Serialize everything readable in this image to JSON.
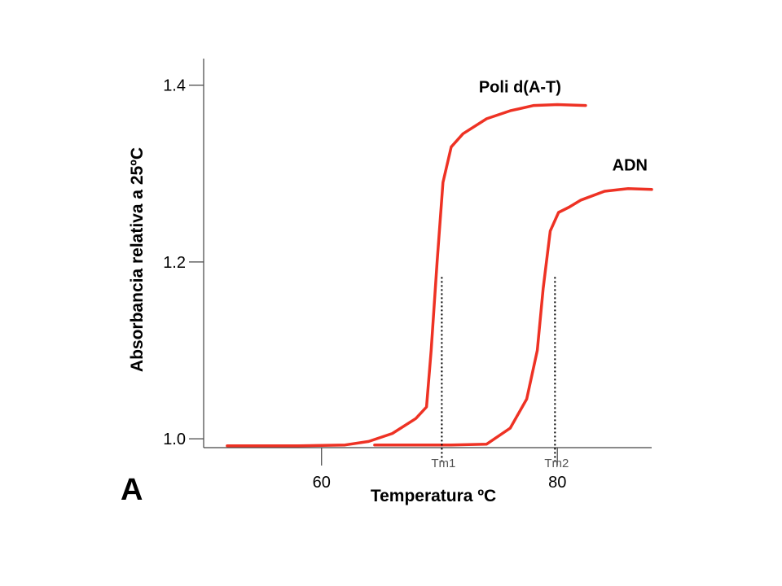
{
  "chart_data": {
    "type": "line",
    "panel_label": "A",
    "xlabel": "Temperatura ºC",
    "ylabel": "Absorbancia relativa a 25ºC",
    "xlim": [
      50,
      88
    ],
    "ylim": [
      0.99,
      1.43
    ],
    "x_ticks": [
      {
        "value": 60,
        "label": "60"
      },
      {
        "value": 80,
        "label": "80"
      }
    ],
    "y_ticks": [
      {
        "value": 1.0,
        "label": "1.0"
      },
      {
        "value": 1.2,
        "label": "1.2"
      },
      {
        "value": 1.4,
        "label": "1.4"
      }
    ],
    "grid": false,
    "line_color": "#ee3224",
    "series": [
      {
        "name": "Poli d(A-T)",
        "x": [
          52,
          58,
          62,
          64,
          66,
          68,
          68.9,
          69.3,
          69.8,
          70.3,
          71,
          72,
          74,
          76,
          78,
          80,
          82.4
        ],
        "y": [
          0.992,
          0.992,
          0.993,
          0.997,
          1.006,
          1.023,
          1.036,
          1.1,
          1.2,
          1.29,
          1.33,
          1.345,
          1.362,
          1.371,
          1.377,
          1.378,
          1.377
        ]
      },
      {
        "name": "ADN",
        "x": [
          64.5,
          68,
          71,
          74,
          76,
          77.4,
          78.3,
          78.8,
          79.4,
          80.1,
          81,
          82,
          84,
          86,
          88
        ],
        "y": [
          0.993,
          0.993,
          0.993,
          0.994,
          1.012,
          1.045,
          1.1,
          1.17,
          1.235,
          1.256,
          1.262,
          1.27,
          1.28,
          1.283,
          1.282
        ]
      }
    ],
    "markers": [
      {
        "label": "Tm1",
        "x": 70.2,
        "y": 1.183
      },
      {
        "label": "Tm2",
        "x": 79.8,
        "y": 1.183
      }
    ]
  }
}
